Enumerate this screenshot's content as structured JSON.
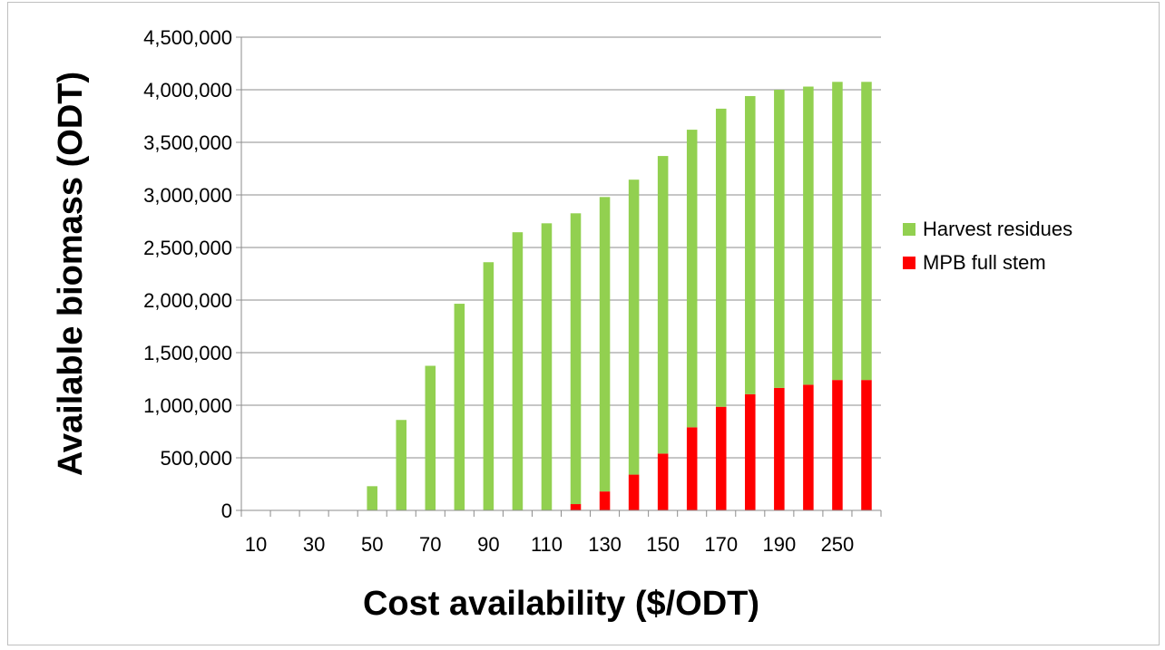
{
  "chart_data": {
    "type": "bar",
    "stacked": true,
    "categories": [
      "10",
      "20",
      "30",
      "40",
      "50",
      "60",
      "70",
      "80",
      "90",
      "100",
      "110",
      "120",
      "130",
      "140",
      "150",
      "160",
      "170",
      "180",
      "190",
      "200",
      "250",
      "260"
    ],
    "tick_labels": [
      "10",
      "30",
      "50",
      "70",
      "90",
      "110",
      "130",
      "150",
      "170",
      "190",
      "250"
    ],
    "series": [
      {
        "name": "MPB full stem",
        "color": "#ff0000",
        "values": [
          0,
          0,
          0,
          0,
          0,
          0,
          0,
          0,
          0,
          0,
          0,
          60000,
          180000,
          340000,
          540000,
          790000,
          985000,
          1105000,
          1165000,
          1195000,
          1240000,
          1240000
        ]
      },
      {
        "name": "Harvest residues",
        "color": "#92d050",
        "values": [
          0,
          0,
          0,
          0,
          230000,
          860000,
          1375000,
          1965000,
          2360000,
          2645000,
          2730000,
          2765000,
          2800000,
          2805000,
          2830000,
          2830000,
          2835000,
          2835000,
          2835000,
          2835000,
          2835000,
          2835000
        ]
      }
    ],
    "xlabel": "Cost availability ($/ODT)",
    "ylabel": "Available biomass (ODT)",
    "ylim": [
      0,
      4500000
    ],
    "ytick_step": 500000,
    "ytick_labels": [
      "0",
      "500,000",
      "1,000,000",
      "1,500,000",
      "2,000,000",
      "2,500,000",
      "3,000,000",
      "3,500,000",
      "4,000,000",
      "4,500,000"
    ],
    "grid": "horizontal",
    "legend_position": "right",
    "legend_order": [
      "Harvest residues",
      "MPB full stem"
    ]
  }
}
